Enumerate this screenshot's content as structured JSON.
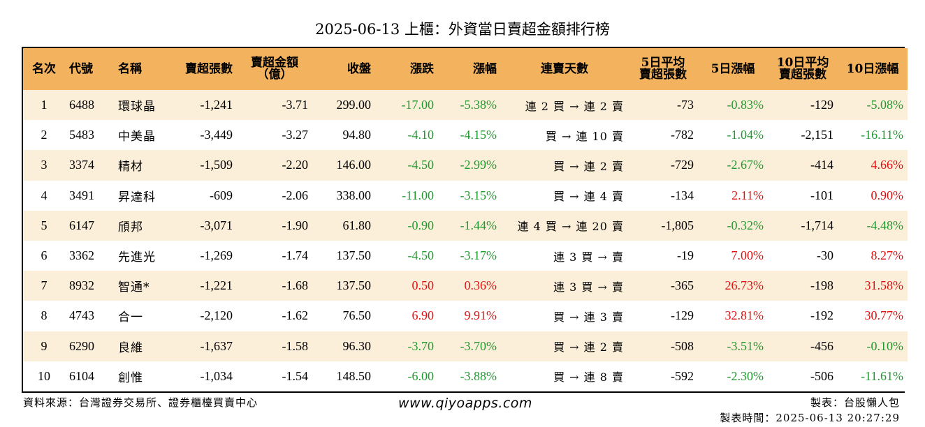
{
  "title": "2025-06-13 上櫃：外資當日賣超金額排行榜",
  "headers": {
    "rank": "名次",
    "code": "代號",
    "name": "名稱",
    "sell_shares": "賣超張數",
    "sell_amount": "賣超金額\n（億）",
    "close": "收盤",
    "change": "漲跌",
    "change_pct": "漲幅",
    "streak": "連賣天數",
    "avg5": "5日平均\n賣超張數",
    "pct5": "5日漲幅",
    "avg10": "10日平均\n賣超張數",
    "pct10": "10日漲幅"
  },
  "rows": [
    {
      "rank": "1",
      "code": "6488",
      "name": "環球晶",
      "sell_shares": "-1,241",
      "sell_amount": "-3.71",
      "close": "299.00",
      "change": "-17.00",
      "change_pct": "-5.38%",
      "streak": "連 2 買 → 連 2 賣",
      "avg5": "-73",
      "pct5": "-0.83%",
      "avg10": "-129",
      "pct10": "-5.08%"
    },
    {
      "rank": "2",
      "code": "5483",
      "name": "中美晶",
      "sell_shares": "-3,449",
      "sell_amount": "-3.27",
      "close": "94.80",
      "change": "-4.10",
      "change_pct": "-4.15%",
      "streak": "買 → 連 10 賣",
      "avg5": "-782",
      "pct5": "-1.04%",
      "avg10": "-2,151",
      "pct10": "-16.11%"
    },
    {
      "rank": "3",
      "code": "3374",
      "name": "精材",
      "sell_shares": "-1,509",
      "sell_amount": "-2.20",
      "close": "146.00",
      "change": "-4.50",
      "change_pct": "-2.99%",
      "streak": "買 → 連 2 賣",
      "avg5": "-729",
      "pct5": "-2.67%",
      "avg10": "-414",
      "pct10": "4.66%"
    },
    {
      "rank": "4",
      "code": "3491",
      "name": "昇達科",
      "sell_shares": "-609",
      "sell_amount": "-2.06",
      "close": "338.00",
      "change": "-11.00",
      "change_pct": "-3.15%",
      "streak": "買 → 連 4 賣",
      "avg5": "-134",
      "pct5": "2.11%",
      "avg10": "-101",
      "pct10": "0.90%"
    },
    {
      "rank": "5",
      "code": "6147",
      "name": "頎邦",
      "sell_shares": "-3,071",
      "sell_amount": "-1.90",
      "close": "61.80",
      "change": "-0.90",
      "change_pct": "-1.44%",
      "streak": "連 4 買 → 連 20 賣",
      "avg5": "-1,805",
      "pct5": "-0.32%",
      "avg10": "-1,714",
      "pct10": "-4.48%"
    },
    {
      "rank": "6",
      "code": "3362",
      "name": "先進光",
      "sell_shares": "-1,269",
      "sell_amount": "-1.74",
      "close": "137.50",
      "change": "-4.50",
      "change_pct": "-3.17%",
      "streak": "連 3 買 → 賣",
      "avg5": "-19",
      "pct5": "7.00%",
      "avg10": "-30",
      "pct10": "8.27%"
    },
    {
      "rank": "7",
      "code": "8932",
      "name": "智通*",
      "sell_shares": "-1,221",
      "sell_amount": "-1.68",
      "close": "137.50",
      "change": "0.50",
      "change_pct": "0.36%",
      "streak": "連 3 買 → 賣",
      "avg5": "-365",
      "pct5": "26.73%",
      "avg10": "-198",
      "pct10": "31.58%"
    },
    {
      "rank": "8",
      "code": "4743",
      "name": "合一",
      "sell_shares": "-2,120",
      "sell_amount": "-1.62",
      "close": "76.50",
      "change": "6.90",
      "change_pct": "9.91%",
      "streak": "買 → 連 3 賣",
      "avg5": "-129",
      "pct5": "32.81%",
      "avg10": "-192",
      "pct10": "30.77%"
    },
    {
      "rank": "9",
      "code": "6290",
      "name": "良維",
      "sell_shares": "-1,637",
      "sell_amount": "-1.58",
      "close": "96.30",
      "change": "-3.70",
      "change_pct": "-3.70%",
      "streak": "買 → 連 2 賣",
      "avg5": "-508",
      "pct5": "-3.51%",
      "avg10": "-456",
      "pct10": "-0.10%"
    },
    {
      "rank": "10",
      "code": "6104",
      "name": "創惟",
      "sell_shares": "-1,034",
      "sell_amount": "-1.54",
      "close": "148.50",
      "change": "-6.00",
      "change_pct": "-3.88%",
      "streak": "買 → 連 8 賣",
      "avg5": "-592",
      "pct5": "-2.30%",
      "avg10": "-506",
      "pct10": "-11.61%"
    }
  ],
  "colors": {
    "header_bg": "#f2b25e",
    "row_alt_bg": "#fcefd9",
    "up": "#e01010",
    "down": "#1e9a2e"
  },
  "footer": {
    "source": "資料來源：台灣證券交易所、證券櫃檯買賣中心",
    "website": "www.qiyoapps.com",
    "maker": "製表：台股懶人包",
    "made_time": "製表時間：2025-06-13 20:27:29"
  }
}
